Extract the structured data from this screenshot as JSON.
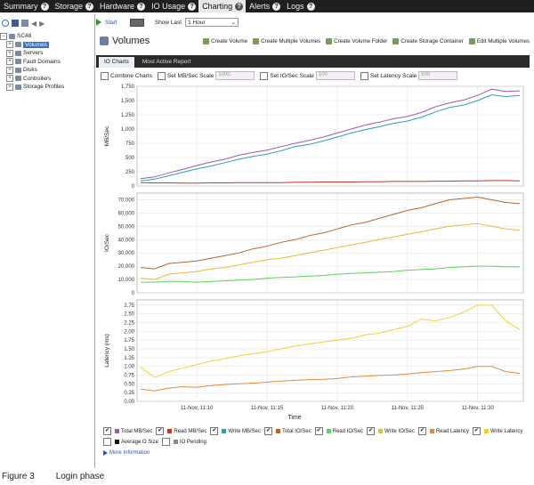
{
  "nav": {
    "tabs": [
      {
        "label": "Summary",
        "active": false
      },
      {
        "label": "Storage",
        "active": false
      },
      {
        "label": "Hardware",
        "active": false
      },
      {
        "label": "IO Usage",
        "active": false
      },
      {
        "label": "Charting",
        "active": true
      },
      {
        "label": "Alerts",
        "active": false
      },
      {
        "label": "Logs",
        "active": false
      }
    ],
    "help_glyph": "?"
  },
  "sidebar": {
    "root": "SC48",
    "items": [
      "Volumes",
      "Servers",
      "Fault Domains",
      "Disks",
      "Controllers",
      "Storage Profiles"
    ],
    "selected": "Volumes"
  },
  "toolbar": {
    "start_label": "Start",
    "show_last_label": "Show Last",
    "show_last_value": "1 Hour"
  },
  "panel": {
    "title": "Volumes",
    "actions": [
      "Create Volume",
      "Create Multiple Volumes",
      "Create Volume Folder",
      "Create Storage Container",
      "Edit Multiple Volumes"
    ],
    "tabs": [
      "IO Charts",
      "Most Active Report"
    ],
    "active_tab": "IO Charts"
  },
  "controls": {
    "combine_charts": "Combine Charts",
    "mb_scale_label": "Set MB/Sec Scale",
    "mb_scale_value": "1000",
    "io_scale_label": "Set IO/Sec Scale",
    "io_scale_value": "100",
    "lat_scale_label": "Set Latency Scale",
    "lat_scale_value": "500"
  },
  "chart_data": [
    {
      "type": "line",
      "ylabel": "MB/Sec",
      "ylim": [
        0,
        1750
      ],
      "yticks": [
        0,
        250,
        500,
        750,
        1000,
        1250,
        1500,
        1750
      ],
      "x": [
        "11:06",
        "11:07",
        "11:08",
        "11:09",
        "11:10",
        "11:11",
        "11:12",
        "11:13",
        "11:14",
        "11:15",
        "11:16",
        "11:17",
        "11:18",
        "11:19",
        "11:20",
        "11:21",
        "11:22",
        "11:23",
        "11:24",
        "11:25",
        "11:26",
        "11:27",
        "11:28",
        "11:29",
        "11:30",
        "11:31",
        "11:32",
        "11:33"
      ],
      "series": [
        {
          "name": "Total MB/Sec",
          "color": "#9b59b6",
          "values": [
            130,
            160,
            230,
            290,
            360,
            420,
            470,
            540,
            590,
            630,
            690,
            750,
            800,
            860,
            930,
            1000,
            1070,
            1120,
            1180,
            1220,
            1290,
            1390,
            1460,
            1510,
            1590,
            1700,
            1660,
            1670
          ]
        },
        {
          "name": "Read MB/Sec",
          "color": "#c0392b",
          "values": [
            60,
            55,
            55,
            50,
            50,
            55,
            55,
            60,
            60,
            60,
            60,
            65,
            65,
            70,
            70,
            70,
            75,
            75,
            80,
            80,
            80,
            85,
            85,
            90,
            90,
            95,
            95,
            90
          ]
        },
        {
          "name": "Write MB/Sec",
          "color": "#2a9fb8",
          "values": [
            90,
            120,
            180,
            240,
            300,
            350,
            410,
            470,
            520,
            560,
            620,
            690,
            730,
            790,
            860,
            930,
            990,
            1040,
            1100,
            1140,
            1210,
            1300,
            1380,
            1420,
            1500,
            1600,
            1570,
            1590
          ]
        }
      ]
    },
    {
      "type": "line",
      "ylabel": "IO/Sec",
      "ylim": [
        0,
        75000
      ],
      "yticks": [
        0,
        10000,
        20000,
        30000,
        40000,
        50000,
        60000,
        70000
      ],
      "x": [
        "11:06",
        "11:07",
        "11:08",
        "11:09",
        "11:10",
        "11:11",
        "11:12",
        "11:13",
        "11:14",
        "11:15",
        "11:16",
        "11:17",
        "11:18",
        "11:19",
        "11:20",
        "11:21",
        "11:22",
        "11:23",
        "11:24",
        "11:25",
        "11:26",
        "11:27",
        "11:28",
        "11:29",
        "11:30",
        "11:31",
        "11:32",
        "11:33"
      ],
      "series": [
        {
          "name": "Total IO/Sec",
          "color": "#b5652a",
          "values": [
            19000,
            18000,
            22000,
            23000,
            24000,
            26000,
            28000,
            30000,
            33000,
            35000,
            38000,
            40000,
            43000,
            45000,
            48000,
            51000,
            53000,
            56000,
            59000,
            62000,
            64000,
            67000,
            70000,
            71000,
            72000,
            70000,
            68000,
            67000
          ]
        },
        {
          "name": "Read IO/Sec",
          "color": "#5bd35b",
          "values": [
            8000,
            8000,
            8500,
            8500,
            8000,
            8500,
            9000,
            9500,
            10000,
            11000,
            11500,
            12000,
            12500,
            13000,
            14000,
            14500,
            15000,
            15500,
            16000,
            17000,
            17500,
            18000,
            19000,
            19500,
            20000,
            20000,
            19500,
            19500
          ]
        },
        {
          "name": "Write IO/Sec",
          "color": "#e8b93a",
          "values": [
            11000,
            10000,
            14000,
            15000,
            16000,
            18000,
            19000,
            21000,
            23000,
            25000,
            26000,
            28000,
            30000,
            32000,
            34000,
            36000,
            38000,
            40000,
            42000,
            44000,
            46000,
            48000,
            50000,
            51000,
            52000,
            50000,
            48000,
            47000
          ]
        }
      ]
    },
    {
      "type": "line",
      "xlabel": "Time",
      "ylabel": "Latency (ms)",
      "ylim": [
        0,
        2.9
      ],
      "yticks": [
        0,
        0.25,
        0.5,
        0.75,
        1.0,
        1.25,
        1.5,
        1.75,
        2.0,
        2.25,
        2.5,
        2.75
      ],
      "xticks": [
        {
          "x": "11:10",
          "label": "11-Nov, 11:10"
        },
        {
          "x": "11:15",
          "label": "11-Nov, 11:15"
        },
        {
          "x": "11:20",
          "label": "11-Nov, 11:20"
        },
        {
          "x": "11:25",
          "label": "11-Nov, 11:25"
        },
        {
          "x": "11:30",
          "label": "11-Nov, 11:30"
        }
      ],
      "x": [
        "11:06",
        "11:07",
        "11:08",
        "11:09",
        "11:10",
        "11:11",
        "11:12",
        "11:13",
        "11:14",
        "11:15",
        "11:16",
        "11:17",
        "11:18",
        "11:19",
        "11:20",
        "11:21",
        "11:22",
        "11:23",
        "11:24",
        "11:25",
        "11:26",
        "11:27",
        "11:28",
        "11:29",
        "11:30",
        "11:31",
        "11:32",
        "11:33"
      ],
      "series": [
        {
          "name": "Read Latency",
          "color": "#e08a3c",
          "values": [
            0.35,
            0.3,
            0.38,
            0.42,
            0.4,
            0.45,
            0.48,
            0.5,
            0.52,
            0.55,
            0.58,
            0.6,
            0.62,
            0.63,
            0.65,
            0.7,
            0.72,
            0.74,
            0.75,
            0.78,
            0.82,
            0.85,
            0.88,
            0.92,
            1.0,
            1.0,
            0.85,
            0.8
          ]
        },
        {
          "name": "Write Latency",
          "color": "#f2d230",
          "values": [
            0.98,
            0.68,
            0.85,
            0.95,
            1.05,
            1.15,
            1.22,
            1.3,
            1.36,
            1.42,
            1.5,
            1.58,
            1.64,
            1.7,
            1.75,
            1.8,
            1.9,
            1.95,
            2.05,
            2.15,
            2.35,
            2.3,
            2.4,
            2.55,
            2.75,
            2.75,
            2.3,
            2.05
          ]
        }
      ]
    }
  ],
  "legend": [
    {
      "label": "Total MB/Sec",
      "color": "#9b59b6",
      "checked": true
    },
    {
      "label": "Read MB/Sec",
      "color": "#c0392b",
      "checked": true
    },
    {
      "label": "Write MB/Sec",
      "color": "#2a9fb8",
      "checked": true
    },
    {
      "label": "Total IO/Sec",
      "color": "#b5652a",
      "checked": true
    },
    {
      "label": "Read IO/Sec",
      "color": "#5bd35b",
      "checked": true
    },
    {
      "label": "Write IO/Sec",
      "color": "#e8b93a",
      "checked": true
    },
    {
      "label": "Read Latency",
      "color": "#e08a3c",
      "checked": true
    },
    {
      "label": "Write Latency",
      "color": "#f2d230",
      "checked": true
    },
    {
      "label": "Average O Size",
      "color": "#111111",
      "checked": false
    },
    {
      "label": "IO Pending",
      "color": "#888888",
      "checked": false
    }
  ],
  "more_info": "More Information",
  "caption": {
    "figure": "Figure 3",
    "text": "Login phase"
  }
}
